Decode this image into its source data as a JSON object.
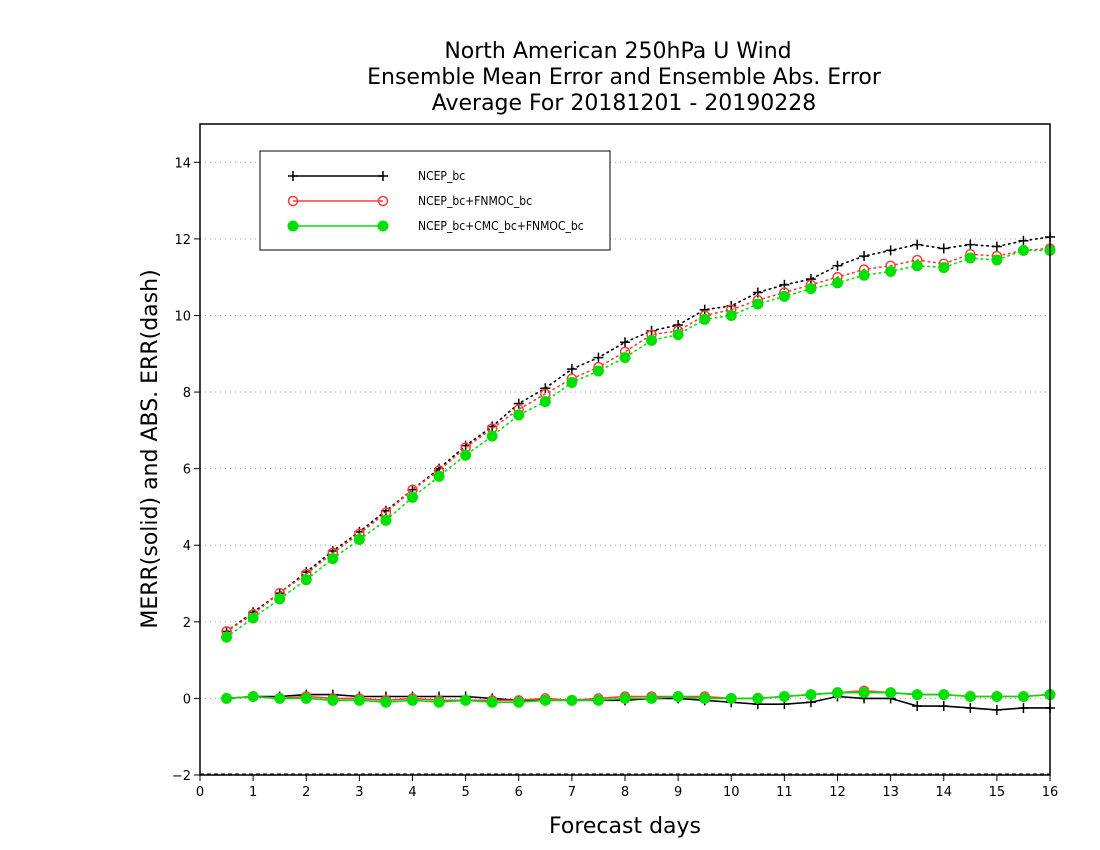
{
  "chart_data": {
    "type": "line",
    "title": [
      "North American 250hPa U Wind",
      "Ensemble Mean Error and Ensemble Abs. Error",
      "Average For 20181201 - 20190228"
    ],
    "xlabel": "Forecast days",
    "ylabel": "MERR(solid) and ABS. ERR(dash)",
    "xlim": [
      0,
      16
    ],
    "ylim": [
      -2,
      15
    ],
    "xticks": [
      0,
      1,
      2,
      3,
      4,
      5,
      6,
      7,
      8,
      9,
      10,
      11,
      12,
      13,
      14,
      15,
      16
    ],
    "yticks": [
      -2,
      0,
      2,
      4,
      6,
      8,
      10,
      12,
      14
    ],
    "grid": "horizontal-dotted",
    "legend_position": "top-left",
    "x": [
      0.5,
      1,
      1.5,
      2,
      2.5,
      3,
      3.5,
      4,
      4.5,
      5,
      5.5,
      6,
      6.5,
      7,
      7.5,
      8,
      8.5,
      9,
      9.5,
      10,
      10.5,
      11,
      11.5,
      12,
      12.5,
      13,
      13.5,
      14,
      14.5,
      15,
      15.5,
      16
    ],
    "series": [
      {
        "name": "NCEP_bc",
        "color": "#000000",
        "marker": "plus",
        "mean_error": [
          0.0,
          0.05,
          0.05,
          0.1,
          0.1,
          0.05,
          0.05,
          0.05,
          0.05,
          0.05,
          0.0,
          -0.05,
          -0.05,
          -0.05,
          -0.05,
          -0.05,
          0.0,
          0.0,
          -0.05,
          -0.1,
          -0.15,
          -0.15,
          -0.1,
          0.05,
          0.0,
          0.0,
          -0.2,
          -0.2,
          -0.25,
          -0.3,
          -0.25,
          -0.25
        ],
        "abs_error": [
          1.75,
          2.25,
          2.75,
          3.3,
          3.85,
          4.35,
          4.9,
          5.45,
          6.0,
          6.6,
          7.1,
          7.7,
          8.1,
          8.6,
          8.9,
          9.3,
          9.6,
          9.75,
          10.15,
          10.25,
          10.6,
          10.8,
          10.95,
          11.3,
          11.55,
          11.7,
          11.85,
          11.75,
          11.85,
          11.8,
          11.95,
          12.05
        ]
      },
      {
        "name": "NCEP_bc+FNMOC_bc",
        "color": "#ff3b3b",
        "marker": "open-circle",
        "mean_error": [
          0.0,
          0.05,
          0.0,
          0.05,
          0.0,
          0.0,
          -0.05,
          0.0,
          -0.05,
          -0.05,
          -0.05,
          -0.05,
          0.0,
          -0.05,
          0.0,
          0.05,
          0.05,
          0.05,
          0.05,
          0.0,
          0.0,
          0.05,
          0.1,
          0.15,
          0.2,
          0.15,
          0.1,
          0.1,
          0.05,
          0.05,
          0.05,
          0.1
        ],
        "abs_error": [
          1.75,
          2.2,
          2.75,
          3.25,
          3.8,
          4.3,
          4.85,
          5.45,
          5.95,
          6.55,
          7.05,
          7.55,
          7.95,
          8.35,
          8.65,
          9.05,
          9.5,
          9.6,
          10.0,
          10.15,
          10.4,
          10.6,
          10.8,
          11.0,
          11.2,
          11.3,
          11.45,
          11.35,
          11.6,
          11.55,
          11.7,
          11.75
        ]
      },
      {
        "name": "NCEP_bc+CMC_bc+FNMOC_bc",
        "color": "#00e000",
        "marker": "filled-circle",
        "mean_error": [
          0.0,
          0.05,
          0.0,
          0.0,
          -0.05,
          -0.05,
          -0.1,
          -0.05,
          -0.1,
          -0.05,
          -0.1,
          -0.1,
          -0.05,
          -0.05,
          -0.05,
          0.0,
          0.0,
          0.05,
          0.0,
          0.0,
          0.0,
          0.05,
          0.1,
          0.15,
          0.15,
          0.15,
          0.1,
          0.1,
          0.05,
          0.05,
          0.05,
          0.1
        ],
        "abs_error": [
          1.6,
          2.1,
          2.6,
          3.1,
          3.65,
          4.15,
          4.65,
          5.25,
          5.8,
          6.35,
          6.85,
          7.4,
          7.75,
          8.25,
          8.55,
          8.9,
          9.35,
          9.5,
          9.9,
          10.0,
          10.3,
          10.5,
          10.7,
          10.85,
          11.05,
          11.15,
          11.3,
          11.25,
          11.5,
          11.45,
          11.7,
          11.7
        ]
      }
    ]
  }
}
